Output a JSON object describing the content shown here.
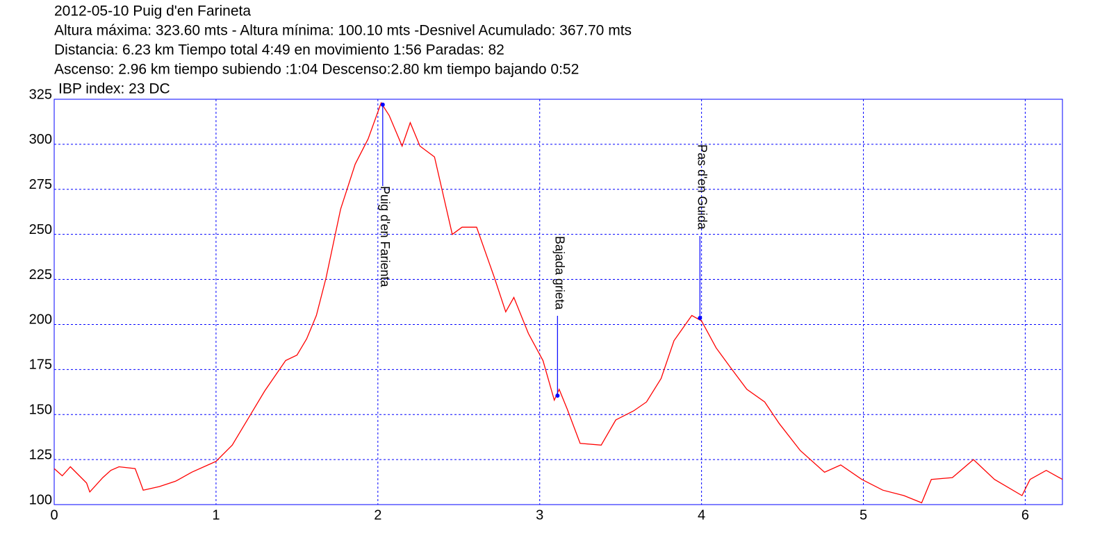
{
  "chart_data": {
    "type": "line",
    "title": "2012-05-10 Puig d'en Farineta",
    "subtitle_lines": [
      "Altura máxima: 323.60 mts - Altura mínima: 100.10 mts -Desnivel Acumulado: 367.70 mts",
      "Distancia: 6.23 km  Tiempo total 4:49  en movimiento 1:56 Paradas: 82",
      "Ascenso: 2.96 km  tiempo subiendo :1:04  Descenso:2.80 km tiempo bajando 0:52",
      "IBP index: 23 DC"
    ],
    "x": [
      0,
      0.05,
      0.1,
      0.2,
      0.22,
      0.3,
      0.35,
      0.4,
      0.5,
      0.53,
      0.55,
      0.65,
      0.75,
      0.85,
      0.95,
      1.0,
      1.1,
      1.2,
      1.3,
      1.43,
      1.5,
      1.56,
      1.62,
      1.68,
      1.77,
      1.86,
      1.94,
      2.02,
      2.07,
      2.15,
      2.2,
      2.26,
      2.35,
      2.46,
      2.52,
      2.61,
      2.72,
      2.79,
      2.84,
      2.93,
      3.02,
      3.09,
      3.12,
      3.17,
      3.25,
      3.38,
      3.47,
      3.58,
      3.66,
      3.75,
      3.83,
      3.94,
      4.0,
      4.09,
      4.18,
      4.28,
      4.39,
      4.48,
      4.61,
      4.76,
      4.86,
      4.99,
      5.12,
      5.25,
      5.36,
      5.42,
      5.55,
      5.68,
      5.81,
      5.98,
      6.03,
      6.13,
      6.23
    ],
    "series": [
      {
        "name": "Altura",
        "color": "#ff0000",
        "values": [
          120,
          116,
          121,
          112,
          107,
          115,
          119,
          121,
          120,
          113,
          108,
          110,
          113,
          118,
          122,
          124,
          133,
          148,
          163,
          180,
          183,
          192,
          205,
          226,
          264,
          289,
          303,
          323,
          316,
          299,
          312,
          299,
          293,
          250,
          254,
          254,
          226,
          207,
          215,
          195,
          180,
          158,
          164,
          153,
          134,
          133,
          147,
          152,
          157,
          170,
          191,
          205,
          202,
          187,
          176,
          164,
          157,
          145,
          130,
          118,
          122,
          114,
          108,
          105,
          101,
          114,
          115,
          125,
          114,
          105,
          114,
          119,
          114
        ]
      }
    ],
    "annotations": [
      {
        "label": "Puig d'en Farienta",
        "x": 2.03,
        "y": 322
      },
      {
        "label": "Bajada grieta",
        "x": 3.11,
        "y": 160.5
      },
      {
        "label": "Pas d'en Guida",
        "x": 3.99,
        "y": 203.6
      }
    ],
    "xlim": [
      0,
      6.23
    ],
    "ylim": [
      100,
      325
    ],
    "xticks": [
      0,
      1,
      2,
      3,
      4,
      5,
      6
    ],
    "yticks": [
      100,
      125,
      150,
      175,
      200,
      225,
      250,
      275,
      300,
      325
    ],
    "grid": true,
    "axis_color": "#0000ff",
    "marker_color": "#0000ff"
  }
}
